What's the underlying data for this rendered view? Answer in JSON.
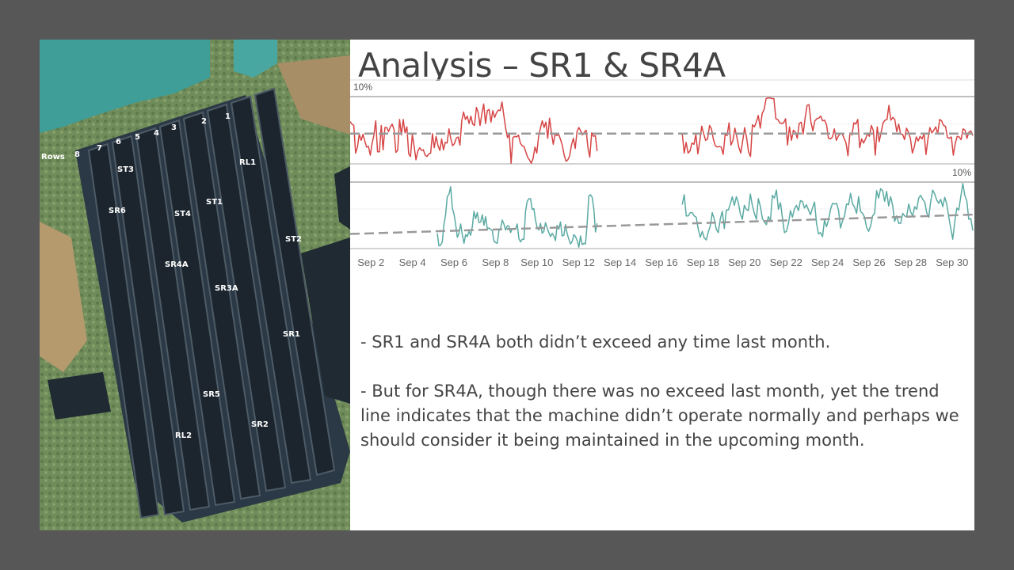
{
  "title": "Analysis – SR1 & SR4A",
  "photo": {
    "labels": {
      "rows": "Rows",
      "row8": "8",
      "row7": "7",
      "row6": "6",
      "row5": "5",
      "row4": "4",
      "row3": "3",
      "row2": "2",
      "row1": "1",
      "rl1": "RL1",
      "st3": "ST3",
      "st1": "ST1",
      "sr6": "SR6",
      "st4": "ST4",
      "st2": "ST2",
      "sr4a": "SR4A",
      "sr3a": "SR3A",
      "sr1": "SR1",
      "sr5": "SR5",
      "sr2": "SR2",
      "rl2": "RL2"
    }
  },
  "notes": [
    " - SR1 and SR4A both didn’t exceed any time last month.",
    " - But for SR4A, though there was no exceed last month, yet the trend line indicates that the machine didn’t operate normally and perhaps we should consider it being maintained in the upcoming month."
  ],
  "chart_data": {
    "type": "line",
    "x_start": "Sep 1",
    "x_end": "Sep 31",
    "x_ticks": [
      "Sep 2",
      "Sep 4",
      "Sep 6",
      "Sep 8",
      "Sep 10",
      "Sep 12",
      "Sep 14",
      "Sep 16",
      "Sep 18",
      "Sep 20",
      "Sep 22",
      "Sep 24",
      "Sep 26",
      "Sep 28",
      "Sep 30"
    ],
    "x_tick_days": [
      2,
      4,
      6,
      8,
      10,
      12,
      14,
      16,
      18,
      20,
      22,
      24,
      26,
      28,
      30
    ],
    "colors": {
      "top": "#d64545",
      "bottom": "#5aaaa2",
      "trend": "#999999"
    },
    "panels": [
      {
        "reference_label": "10%",
        "reference_label_position": "top-left",
        "y_range": [
          0,
          10
        ],
        "reference_value": 10,
        "trend": [
          {
            "day": 1.0,
            "value": 4.5
          },
          {
            "day": 31.0,
            "value": 4.5
          }
        ],
        "segments": [
          {
            "start_day": 1.0,
            "end_day": 12.9,
            "values": [
              6.3,
              5.9,
              5.7,
              1.6,
              2.5,
              4.4,
              3.5,
              4.4,
              3.4,
              2.5,
              2.6,
              1.3,
              3.0,
              4.3,
              6.4,
              1.8,
              1.8,
              5.7,
              2.1,
              5.4,
              5.4,
              4.8,
              5.5,
              5.9,
              5.1,
              1.7,
              2.0,
              6.6,
              4.3,
              6.6,
              4.6,
              5.5,
              1.5,
              1.1,
              4.4,
              2.6,
              0.6,
              1.9,
              2.4,
              2.0,
              2.1,
              1.3,
              1.1,
              1.5,
              1.6,
              4.5,
              2.4,
              4.1,
              2.7,
              2.0,
              3.7,
              2.1,
              3.2,
              3.1,
              5.2,
              3.8,
              2.7,
              3.0,
              3.8,
              4.0,
              2.8,
              6.4,
              7.7,
              6.6,
              7.1,
              6.0,
              7.1,
              5.9,
              5.7,
              8.4,
              7.6,
              5.7,
              7.5,
              8.9,
              6.0,
              7.9,
              8.1,
              6.2,
              7.9,
              6.9,
              7.6,
              8.0,
              7.9,
              9.2,
              7.2,
              5.3,
              3.9,
              4.4,
              0.1,
              3.9,
              4.1,
              4.0,
              4.3,
              3.1,
              2.7,
              2.6,
              1.8,
              1.0,
              0.6,
              0.1,
              0.8,
              2.5,
              1.6,
              4.1,
              5.3,
              6.4,
              5.4,
              6.2,
              3.8,
              6.8,
              4.7,
              2.9,
              4.4,
              4.2,
              4.4,
              3.6,
              2.7,
              1.3,
              0.4,
              0.6,
              1.2,
              2.8,
              3.8,
              2.3,
              4.8,
              5.4,
              4.9,
              4.3,
              4.7,
              5.0,
              2.4,
              1.0,
              4.6,
              4.1,
              4.2,
              1.9
            ]
          },
          {
            "start_day": 17.0,
            "end_day": 31.0,
            "values": [
              4.5,
              1.6,
              3.2,
              1.6,
              1.9,
              3.1,
              2.9,
              4.4,
              1.5,
              3.4,
              5.6,
              4.5,
              3.5,
              3.7,
              5.7,
              5.2,
              3.6,
              2.7,
              2.5,
              2.6,
              2.5,
              1.4,
              4.4,
              4.2,
              6.1,
              2.8,
              3.5,
              5.3,
              4.0,
              2.5,
              1.6,
              3.4,
              5.4,
              3.9,
              1.8,
              1.1,
              5.8,
              5.5,
              6.2,
              7.2,
              5.3,
              7.5,
              8.1,
              9.7,
              9.8,
              9.8,
              9.7,
              9.7,
              6.7,
              6.6,
              6.1,
              6.0,
              6.1,
              6.7,
              2.8,
              5.5,
              3.5,
              5.0,
              4.7,
              3.8,
              6.0,
              6.2,
              4.4,
              6.8,
              8.7,
              8.8,
              6.2,
              4.9,
              6.4,
              6.7,
              6.8,
              7.1,
              6.4,
              6.5,
              5.8,
              3.8,
              3.7,
              4.0,
              5.2,
              3.5,
              4.1,
              4.5,
              4.5,
              3.8,
              3.1,
              1.2,
              4.6,
              4.3,
              6.1,
              5.9,
              6.6,
              2.4,
              3.7,
              3.1,
              3.7,
              4.5,
              4.1,
              5.7,
              4.9,
              1.3,
              5.5,
              3.3,
              4.7,
              6.1,
              6.5,
              6.6,
              8.7,
              6.5,
              6.9,
              6.6,
              4.8,
              5.9,
              4.4,
              4.4,
              3.6,
              5.3,
              4.7,
              3.8,
              1.6,
              2.5,
              4.0,
              3.4,
              4.1,
              3.7,
              4.5,
              1.4,
              3.7,
              5.4,
              4.6,
              5.0,
              5.5,
              4.5,
              6.6,
              6.4,
              5.7,
              5.6,
              3.9,
              3.8,
              4.0,
              1.3,
              3.0,
              4.1,
              4.0,
              3.6,
              5.2,
              5.0,
              3.8,
              4.7,
              4.9,
              4.2
            ]
          }
        ]
      },
      {
        "reference_label": "10%",
        "reference_label_position": "top-right",
        "y_range": [
          0,
          10
        ],
        "reference_value": 10,
        "trend": [
          {
            "day": 1.0,
            "value": 2.2
          },
          {
            "day": 31.0,
            "value": 5.1
          }
        ],
        "segments": [
          {
            "start_day": 5.2,
            "end_day": 12.9,
            "values": [
              2.3,
              0.4,
              0.5,
              1.0,
              3.6,
              5.1,
              7.8,
              8.2,
              9.3,
              6.1,
              5.2,
              3.6,
              1.7,
              2.3,
              3.7,
              2.1,
              0.8,
              2.1,
              1.8,
              2.6,
              2.0,
              3.3,
              5.6,
              4.5,
              5.4,
              3.9,
              4.0,
              5.1,
              3.5,
              4.8,
              3.0,
              3.1,
              2.9,
              2.7,
              1.1,
              0.9,
              0.8,
              2.7,
              3.0,
              4.3,
              3.7,
              2.8,
              3.4,
              3.4,
              2.4,
              3.0,
              2.9,
              2.9,
              3.7,
              1.5,
              1.0,
              1.4,
              1.4,
              5.6,
              7.1,
              7.5,
              7.5,
              5.9,
              6.0,
              4.3,
              3.1,
              2.8,
              3.8,
              2.3,
              2.6,
              3.9,
              3.1,
              2.4,
              1.8,
              2.3,
              1.9,
              1.2,
              3.5,
              2.9,
              4.0,
              1.9,
              2.0,
              3.6,
              2.2,
              1.4,
              0.7,
              1.1,
              2.1,
              1.8,
              1.2,
              0.2,
              1.9,
              0.6,
              0.8,
              0.7,
              3.8,
              7.9,
              8.1,
              7.7,
              6.0,
              2.5,
              3.8
            ]
          },
          {
            "start_day": 17.0,
            "end_day": 31.0,
            "values": [
              6.6,
              8.1,
              4.9,
              4.9,
              5.4,
              5.4,
              4.9,
              4.7,
              2.9,
              1.7,
              2.6,
              1.6,
              1.3,
              2.5,
              3.4,
              5.4,
              4.4,
              2.9,
              2.4,
              4.5,
              5.6,
              3.0,
              5.8,
              5.8,
              6.7,
              7.8,
              6.5,
              7.8,
              6.9,
              5.2,
              4.4,
              6.5,
              5.9,
              5.7,
              8.2,
              6.5,
              5.3,
              4.4,
              7.5,
              6.3,
              4.5,
              4.0,
              3.6,
              4.8,
              4.1,
              8.0,
              7.6,
              8.8,
              5.9,
              6.9,
              4.6,
              2.4,
              2.6,
              3.8,
              5.7,
              4.7,
              6.0,
              6.5,
              5.7,
              7.2,
              7.1,
              6.1,
              6.6,
              5.8,
              5.1,
              6.1,
              7.0,
              3.8,
              2.2,
              2.4,
              1.8,
              4.3,
              3.3,
              4.3,
              5.9,
              6.8,
              6.7,
              6.8,
              5.8,
              3.1,
              4.2,
              4.9,
              6.7,
              6.6,
              8.3,
              6.7,
              6.2,
              5.3,
              7.8,
              5.6,
              5.3,
              4.7,
              3.2,
              2.6,
              3.4,
              4.9,
              5.3,
              8.7,
              7.6,
              9.0,
              8.7,
              7.1,
              8.6,
              6.4,
              7.8,
              6.5,
              4.1,
              4.9,
              3.8,
              3.8,
              5.3,
              4.9,
              4.8,
              6.7,
              5.5,
              4.9,
              6.3,
              5.9,
              7.6,
              8.0,
              7.4,
              7.0,
              5.4,
              4.7,
              7.1,
              8.8,
              8.2,
              7.3,
              6.8,
              7.4,
              6.3,
              7.7,
              6.7,
              4.8,
              3.0,
              1.4,
              4.0,
              6.1,
              5.8,
              7.8,
              9.8,
              8.0,
              7.2,
              4.4,
              4.5,
              2.7
            ]
          }
        ]
      }
    ]
  }
}
